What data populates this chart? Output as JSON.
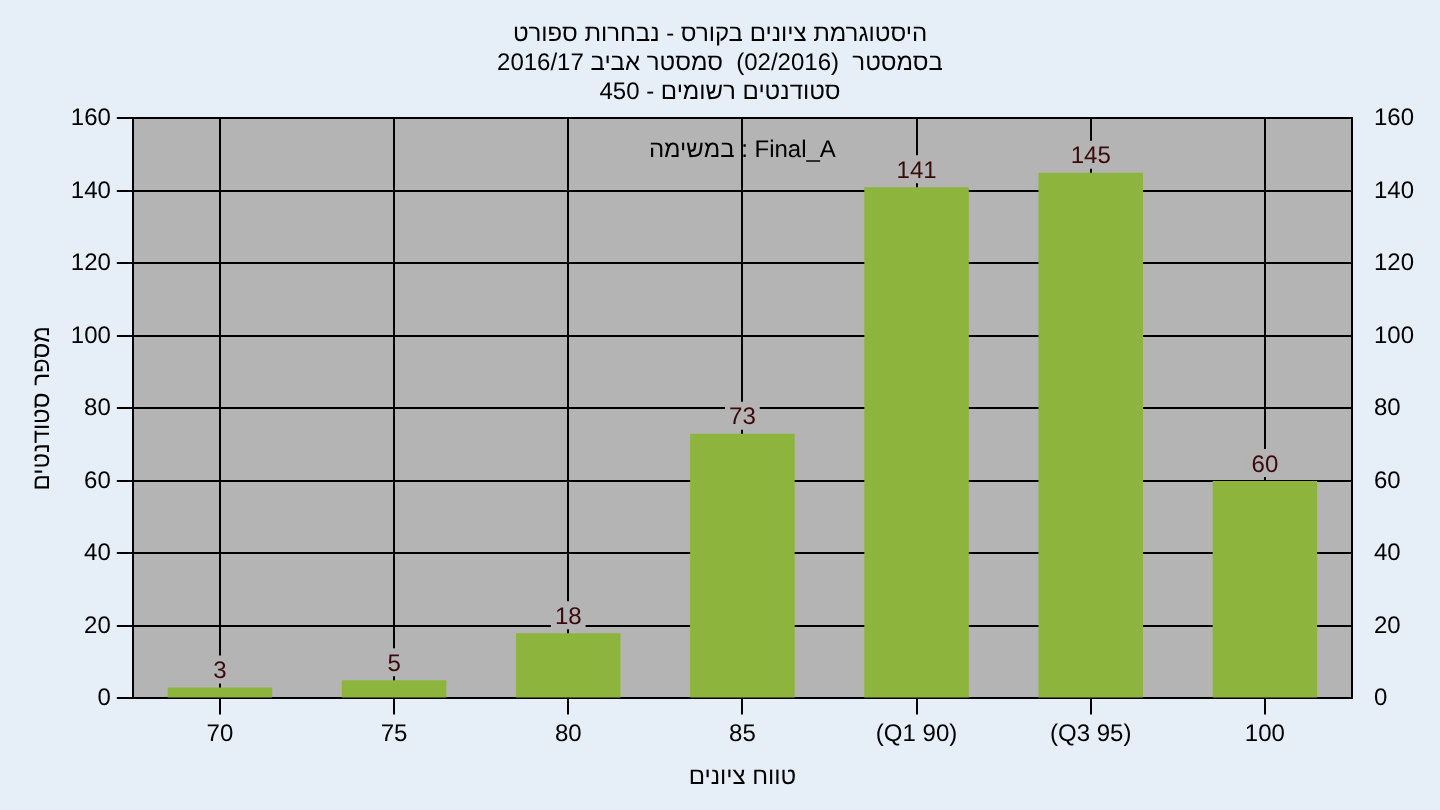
{
  "chart_data": {
    "type": "bar",
    "title": "היסטוגרמת ציונים בקורס - נבחרות ספורט\nבסמסטר  (02/2016)  סמסטר אביב 2016/17\nסטודנטים רשומים - 450",
    "xlabel": "טווח ציונים",
    "ylabel": "מספר סטודנטים",
    "annotations": [
      "במשימה : Final_A"
    ],
    "categories": [
      "70",
      "75",
      "80",
      "85",
      "(Q1 90)",
      "(Q3 95)",
      "100"
    ],
    "values": [
      3,
      5,
      18,
      73,
      141,
      145,
      60
    ],
    "color": "#8db43c",
    "ylim": [
      0,
      160
    ],
    "yticks": [
      0,
      20,
      40,
      60,
      80,
      100,
      120,
      140,
      160
    ],
    "y2lim": [
      0,
      160
    ],
    "y2ticks": [
      0,
      20,
      40,
      60,
      80,
      100,
      120,
      140,
      160
    ],
    "data_labels": true,
    "grid": true,
    "legend": false
  }
}
